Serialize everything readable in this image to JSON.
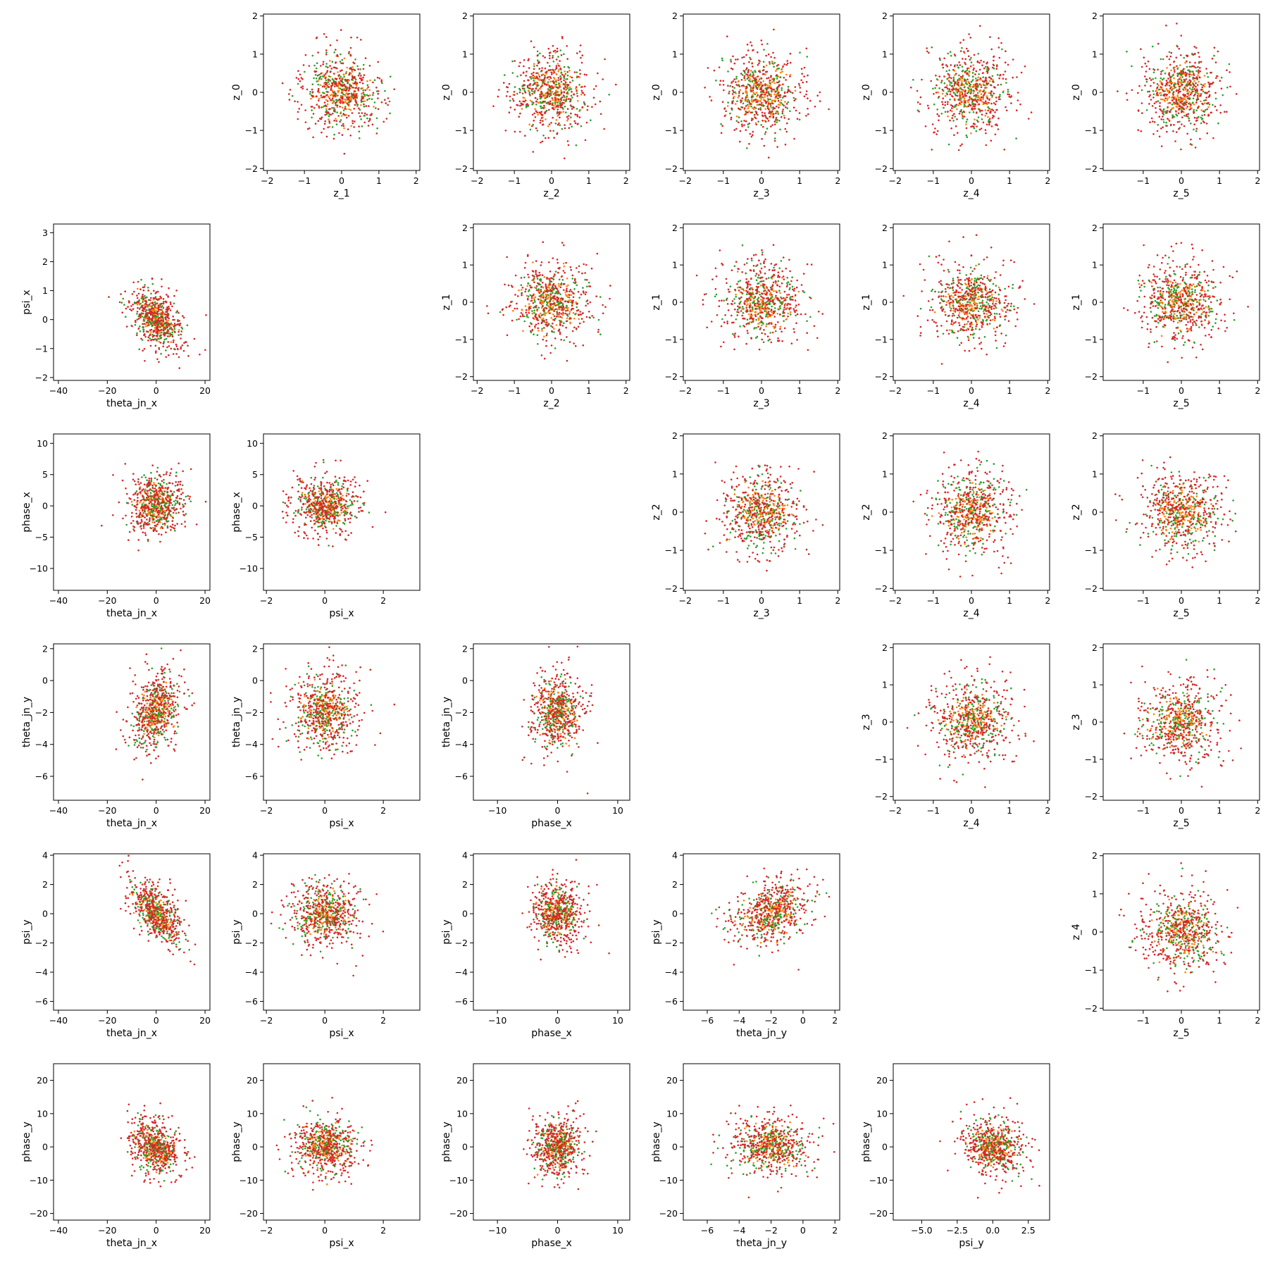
{
  "colors": {
    "series_a": "#ff7f0e",
    "series_b": "#2ca02c",
    "series_c": "#d62728"
  },
  "chart_data": [
    {
      "type": "scatter",
      "row": 0,
      "col": 1,
      "xlabel": "z_1",
      "ylabel": "z_0",
      "xlim": [
        -2.1,
        2.1
      ],
      "ylim": [
        -2.05,
        2.05
      ],
      "xticks": [
        -2,
        -1,
        0,
        1,
        2
      ],
      "yticks": [
        -2,
        -1,
        0,
        1,
        2
      ],
      "dist": {
        "kind": "gauss",
        "mx": 0,
        "my": 0,
        "sx": 0.6,
        "sy": 0.6,
        "clip": 1.85
      }
    },
    {
      "type": "scatter",
      "row": 0,
      "col": 2,
      "xlabel": "z_2",
      "ylabel": "z_0",
      "xlim": [
        -2.1,
        2.1
      ],
      "ylim": [
        -2.05,
        2.05
      ],
      "xticks": [
        -2,
        -1,
        0,
        1,
        2
      ],
      "yticks": [
        -2,
        -1,
        0,
        1,
        2
      ],
      "dist": {
        "kind": "gauss",
        "mx": 0,
        "my": 0,
        "sx": 0.6,
        "sy": 0.6,
        "clip": 1.85
      }
    },
    {
      "type": "scatter",
      "row": 0,
      "col": 3,
      "xlabel": "z_3",
      "ylabel": "z_0",
      "xlim": [
        -2.05,
        2.05
      ],
      "ylim": [
        -2.05,
        2.05
      ],
      "xticks": [
        -2,
        -1,
        0,
        1,
        2
      ],
      "yticks": [
        -2,
        -1,
        0,
        1,
        2
      ],
      "dist": {
        "kind": "gauss",
        "mx": 0,
        "my": 0,
        "sx": 0.6,
        "sy": 0.6,
        "clip": 1.85
      }
    },
    {
      "type": "scatter",
      "row": 0,
      "col": 4,
      "xlabel": "z_4",
      "ylabel": "z_0",
      "xlim": [
        -2.05,
        2.05
      ],
      "ylim": [
        -2.05,
        2.05
      ],
      "xticks": [
        -2,
        -1,
        0,
        1,
        2
      ],
      "yticks": [
        -2,
        -1,
        0,
        1,
        2
      ],
      "dist": {
        "kind": "gauss",
        "mx": 0,
        "my": 0,
        "sx": 0.6,
        "sy": 0.6,
        "clip": 1.85
      }
    },
    {
      "type": "scatter",
      "row": 0,
      "col": 5,
      "xlabel": "z_5",
      "ylabel": "z_0",
      "xlim": [
        -2.05,
        2.05
      ],
      "ylim": [
        -2.05,
        2.05
      ],
      "xticks": [
        -1,
        0,
        1,
        2
      ],
      "yticks": [
        -2,
        -1,
        0,
        1,
        2
      ],
      "dist": {
        "kind": "gauss",
        "mx": 0,
        "my": 0,
        "sx": 0.6,
        "sy": 0.6,
        "clip": 1.85
      }
    },
    {
      "type": "scatter",
      "row": 1,
      "col": 0,
      "xlabel": "theta_jn_x",
      "ylabel": "psi_x",
      "xlim": [
        -42,
        22
      ],
      "ylim": [
        -2.1,
        3.3
      ],
      "xticks": [
        -40,
        -20,
        0,
        20
      ],
      "yticks": [
        -2,
        -1,
        0,
        1,
        2,
        3
      ],
      "dist": {
        "kind": "gauss",
        "mx": 0,
        "my": 0,
        "sx": 6,
        "sy": 0.6,
        "rho": -0.4
      }
    },
    {
      "type": "scatter",
      "row": 1,
      "col": 2,
      "xlabel": "z_2",
      "ylabel": "z_1",
      "xlim": [
        -2.1,
        2.1
      ],
      "ylim": [
        -2.1,
        2.1
      ],
      "xticks": [
        -2,
        -1,
        0,
        1,
        2
      ],
      "yticks": [
        -2,
        -1,
        0,
        1,
        2
      ],
      "dist": {
        "kind": "gauss",
        "mx": 0,
        "my": 0,
        "sx": 0.6,
        "sy": 0.6,
        "clip": 1.85
      }
    },
    {
      "type": "scatter",
      "row": 1,
      "col": 3,
      "xlabel": "z_3",
      "ylabel": "z_1",
      "xlim": [
        -2.05,
        2.05
      ],
      "ylim": [
        -2.1,
        2.1
      ],
      "xticks": [
        -2,
        -1,
        0,
        1,
        2
      ],
      "yticks": [
        -2,
        -1,
        0,
        1,
        2
      ],
      "dist": {
        "kind": "gauss",
        "mx": 0,
        "my": 0,
        "sx": 0.6,
        "sy": 0.6,
        "clip": 1.85
      }
    },
    {
      "type": "scatter",
      "row": 1,
      "col": 4,
      "xlabel": "z_4",
      "ylabel": "z_1",
      "xlim": [
        -2.05,
        2.05
      ],
      "ylim": [
        -2.1,
        2.1
      ],
      "xticks": [
        -2,
        -1,
        0,
        1,
        2
      ],
      "yticks": [
        -2,
        -1,
        0,
        1,
        2
      ],
      "dist": {
        "kind": "gauss",
        "mx": 0,
        "my": 0,
        "sx": 0.6,
        "sy": 0.6,
        "clip": 1.85
      }
    },
    {
      "type": "scatter",
      "row": 1,
      "col": 5,
      "xlabel": "z_5",
      "ylabel": "z_1",
      "xlim": [
        -2.05,
        2.05
      ],
      "ylim": [
        -2.1,
        2.1
      ],
      "xticks": [
        -1,
        0,
        1,
        2
      ],
      "yticks": [
        -2,
        -1,
        0,
        1,
        2
      ],
      "dist": {
        "kind": "gauss",
        "mx": 0,
        "my": 0,
        "sx": 0.6,
        "sy": 0.6,
        "clip": 1.85
      }
    },
    {
      "type": "scatter",
      "row": 2,
      "col": 0,
      "xlabel": "theta_jn_x",
      "ylabel": "phase_x",
      "xlim": [
        -42,
        22
      ],
      "ylim": [
        -13.5,
        11.5
      ],
      "xticks": [
        -40,
        -20,
        0,
        20
      ],
      "yticks": [
        -10,
        -5,
        0,
        5,
        10
      ],
      "dist": {
        "kind": "gauss",
        "mx": 0,
        "my": 0,
        "sx": 6,
        "sy": 2.6
      }
    },
    {
      "type": "scatter",
      "row": 2,
      "col": 1,
      "xlabel": "psi_x",
      "ylabel": "phase_x",
      "xlim": [
        -2.1,
        3.25
      ],
      "ylim": [
        -13.5,
        11.5
      ],
      "xticks": [
        -2,
        0,
        2
      ],
      "yticks": [
        -10,
        -5,
        0,
        5,
        10
      ],
      "dist": {
        "kind": "gauss",
        "mx": 0,
        "my": 0,
        "sx": 0.65,
        "sy": 2.5
      }
    },
    {
      "type": "scatter",
      "row": 2,
      "col": 3,
      "xlabel": "z_3",
      "ylabel": "z_2",
      "xlim": [
        -2.05,
        2.05
      ],
      "ylim": [
        -2.05,
        2.05
      ],
      "xticks": [
        -2,
        -1,
        0,
        1,
        2
      ],
      "yticks": [
        -2,
        -1,
        0,
        1,
        2
      ],
      "dist": {
        "kind": "gauss",
        "mx": 0,
        "my": 0,
        "sx": 0.6,
        "sy": 0.6,
        "clip": 1.85
      }
    },
    {
      "type": "scatter",
      "row": 2,
      "col": 4,
      "xlabel": "z_4",
      "ylabel": "z_2",
      "xlim": [
        -2.05,
        2.05
      ],
      "ylim": [
        -2.05,
        2.05
      ],
      "xticks": [
        -2,
        -1,
        0,
        1,
        2
      ],
      "yticks": [
        -2,
        -1,
        0,
        1,
        2
      ],
      "dist": {
        "kind": "gauss",
        "mx": 0,
        "my": 0,
        "sx": 0.6,
        "sy": 0.6,
        "clip": 1.85
      }
    },
    {
      "type": "scatter",
      "row": 2,
      "col": 5,
      "xlabel": "z_5",
      "ylabel": "z_2",
      "xlim": [
        -2.05,
        2.05
      ],
      "ylim": [
        -2.05,
        2.05
      ],
      "xticks": [
        -1,
        0,
        1,
        2
      ],
      "yticks": [
        -2,
        -1,
        0,
        1,
        2
      ],
      "dist": {
        "kind": "gauss",
        "mx": 0,
        "my": 0,
        "sx": 0.6,
        "sy": 0.6,
        "clip": 1.85
      }
    },
    {
      "type": "scatter",
      "row": 3,
      "col": 0,
      "xlabel": "theta_jn_x",
      "ylabel": "theta_jn_y",
      "xlim": [
        -42,
        22
      ],
      "ylim": [
        -7.5,
        2.3
      ],
      "xticks": [
        -40,
        -20,
        0,
        20
      ],
      "yticks": [
        -6,
        -4,
        -2,
        0,
        2
      ],
      "dist": {
        "kind": "gauss",
        "mx": 0,
        "my": -2,
        "sx": 6,
        "sy": 1.4,
        "rho": 0.3
      }
    },
    {
      "type": "scatter",
      "row": 3,
      "col": 1,
      "xlabel": "psi_x",
      "ylabel": "theta_jn_y",
      "xlim": [
        -2.1,
        3.25
      ],
      "ylim": [
        -7.5,
        2.3
      ],
      "xticks": [
        -2,
        0,
        2
      ],
      "yticks": [
        -6,
        -4,
        -2,
        0,
        2
      ],
      "dist": {
        "kind": "gauss",
        "mx": 0,
        "my": -2,
        "sx": 0.65,
        "sy": 1.4
      }
    },
    {
      "type": "scatter",
      "row": 3,
      "col": 2,
      "xlabel": "phase_x",
      "ylabel": "theta_jn_y",
      "xlim": [
        -14,
        12
      ],
      "ylim": [
        -7.5,
        2.3
      ],
      "xticks": [
        -10,
        0,
        10
      ],
      "yticks": [
        -6,
        -4,
        -2,
        0,
        2
      ],
      "dist": {
        "kind": "gauss",
        "mx": 0,
        "my": -2,
        "sx": 2.3,
        "sy": 1.4
      }
    },
    {
      "type": "scatter",
      "row": 3,
      "col": 4,
      "xlabel": "z_4",
      "ylabel": "z_3",
      "xlim": [
        -2.05,
        2.05
      ],
      "ylim": [
        -2.1,
        2.1
      ],
      "xticks": [
        -2,
        -1,
        0,
        1,
        2
      ],
      "yticks": [
        -2,
        -1,
        0,
        1,
        2
      ],
      "dist": {
        "kind": "gauss",
        "mx": 0,
        "my": 0,
        "sx": 0.6,
        "sy": 0.6,
        "clip": 1.85
      }
    },
    {
      "type": "scatter",
      "row": 3,
      "col": 5,
      "xlabel": "z_5",
      "ylabel": "z_3",
      "xlim": [
        -2.05,
        2.05
      ],
      "ylim": [
        -2.1,
        2.1
      ],
      "xticks": [
        -1,
        0,
        1,
        2
      ],
      "yticks": [
        -2,
        -1,
        0,
        1,
        2
      ],
      "dist": {
        "kind": "gauss",
        "mx": 0,
        "my": 0,
        "sx": 0.6,
        "sy": 0.6,
        "clip": 1.85
      }
    },
    {
      "type": "scatter",
      "row": 4,
      "col": 0,
      "xlabel": "theta_jn_x",
      "ylabel": "psi_y",
      "xlim": [
        -42,
        22
      ],
      "ylim": [
        -6.6,
        4.1
      ],
      "xticks": [
        -40,
        -20,
        0,
        20
      ],
      "yticks": [
        -6,
        -4,
        -2,
        0,
        2,
        4
      ],
      "dist": {
        "kind": "gauss",
        "mx": 0,
        "my": 0,
        "sx": 6,
        "sy": 1.3,
        "rho": -0.6
      }
    },
    {
      "type": "scatter",
      "row": 4,
      "col": 1,
      "xlabel": "psi_x",
      "ylabel": "psi_y",
      "xlim": [
        -2.1,
        3.25
      ],
      "ylim": [
        -6.6,
        4.1
      ],
      "xticks": [
        -2,
        0,
        2
      ],
      "yticks": [
        -6,
        -4,
        -2,
        0,
        2,
        4
      ],
      "dist": {
        "kind": "gauss",
        "mx": 0,
        "my": 0,
        "sx": 0.65,
        "sy": 1.2
      }
    },
    {
      "type": "scatter",
      "row": 4,
      "col": 2,
      "xlabel": "phase_x",
      "ylabel": "psi_y",
      "xlim": [
        -14,
        12
      ],
      "ylim": [
        -6.6,
        4.1
      ],
      "xticks": [
        -10,
        0,
        10
      ],
      "yticks": [
        -6,
        -4,
        -2,
        0,
        2,
        4
      ],
      "dist": {
        "kind": "gauss",
        "mx": 0,
        "my": 0,
        "sx": 2.3,
        "sy": 1.2
      }
    },
    {
      "type": "scatter",
      "row": 4,
      "col": 3,
      "xlabel": "theta_jn_y",
      "ylabel": "psi_y",
      "xlim": [
        -7.5,
        2.3
      ],
      "ylim": [
        -6.6,
        4.1
      ],
      "xticks": [
        -6,
        -4,
        -2,
        0,
        2
      ],
      "yticks": [
        -6,
        -4,
        -2,
        0,
        2,
        4
      ],
      "dist": {
        "kind": "gauss",
        "mx": -2,
        "my": 0,
        "sx": 1.4,
        "sy": 1.2,
        "rho": 0.3
      }
    },
    {
      "type": "scatter",
      "row": 4,
      "col": 5,
      "xlabel": "z_5",
      "ylabel": "z_4",
      "xlim": [
        -2.05,
        2.05
      ],
      "ylim": [
        -2.05,
        2.05
      ],
      "xticks": [
        -1,
        0,
        1,
        2
      ],
      "yticks": [
        -2,
        -1,
        0,
        1,
        2
      ],
      "dist": {
        "kind": "gauss",
        "mx": 0,
        "my": 0,
        "sx": 0.6,
        "sy": 0.6,
        "clip": 1.85
      }
    },
    {
      "type": "scatter",
      "row": 5,
      "col": 0,
      "xlabel": "theta_jn_x",
      "ylabel": "phase_y",
      "xlim": [
        -42,
        22
      ],
      "ylim": [
        -22,
        25
      ],
      "xticks": [
        -40,
        -20,
        0,
        20
      ],
      "yticks": [
        -20,
        -10,
        0,
        10,
        20
      ],
      "dist": {
        "kind": "gauss",
        "mx": 0,
        "my": 0,
        "sx": 6,
        "sy": 5,
        "rho": -0.3
      }
    },
    {
      "type": "scatter",
      "row": 5,
      "col": 1,
      "xlabel": "psi_x",
      "ylabel": "phase_y",
      "xlim": [
        -2.1,
        3.25
      ],
      "ylim": [
        -22,
        25
      ],
      "xticks": [
        -2,
        0,
        2
      ],
      "yticks": [
        -20,
        -10,
        0,
        10,
        20
      ],
      "dist": {
        "kind": "gauss",
        "mx": 0,
        "my": 0,
        "sx": 0.65,
        "sy": 5
      }
    },
    {
      "type": "scatter",
      "row": 5,
      "col": 2,
      "xlabel": "phase_x",
      "ylabel": "phase_y",
      "xlim": [
        -14,
        12
      ],
      "ylim": [
        -22,
        25
      ],
      "xticks": [
        -10,
        0,
        10
      ],
      "yticks": [
        -20,
        -10,
        0,
        10,
        20
      ],
      "dist": {
        "kind": "gauss",
        "mx": 0,
        "my": 0,
        "sx": 2.3,
        "sy": 5
      }
    },
    {
      "type": "scatter",
      "row": 5,
      "col": 3,
      "xlabel": "theta_jn_y",
      "ylabel": "phase_y",
      "xlim": [
        -7.5,
        2.3
      ],
      "ylim": [
        -22,
        25
      ],
      "xticks": [
        -6,
        -4,
        -2,
        0,
        2
      ],
      "yticks": [
        -20,
        -10,
        0,
        10,
        20
      ],
      "dist": {
        "kind": "gauss",
        "mx": -2,
        "my": 0,
        "sx": 1.4,
        "sy": 5
      }
    },
    {
      "type": "scatter",
      "row": 5,
      "col": 4,
      "xlabel": "psi_y",
      "ylabel": "phase_y",
      "xlim": [
        -7,
        4
      ],
      "ylim": [
        -22,
        25
      ],
      "xticks": [
        -5,
        -2.5,
        0,
        2.5
      ],
      "xticklabels": [
        "−5.0",
        "−2.5",
        "0.0",
        "2.5"
      ],
      "yticks": [
        -20,
        -10,
        0,
        10,
        20
      ],
      "dist": {
        "kind": "gauss",
        "mx": 0,
        "my": 0,
        "sx": 1.2,
        "sy": 5,
        "rho": -0.2
      }
    }
  ]
}
